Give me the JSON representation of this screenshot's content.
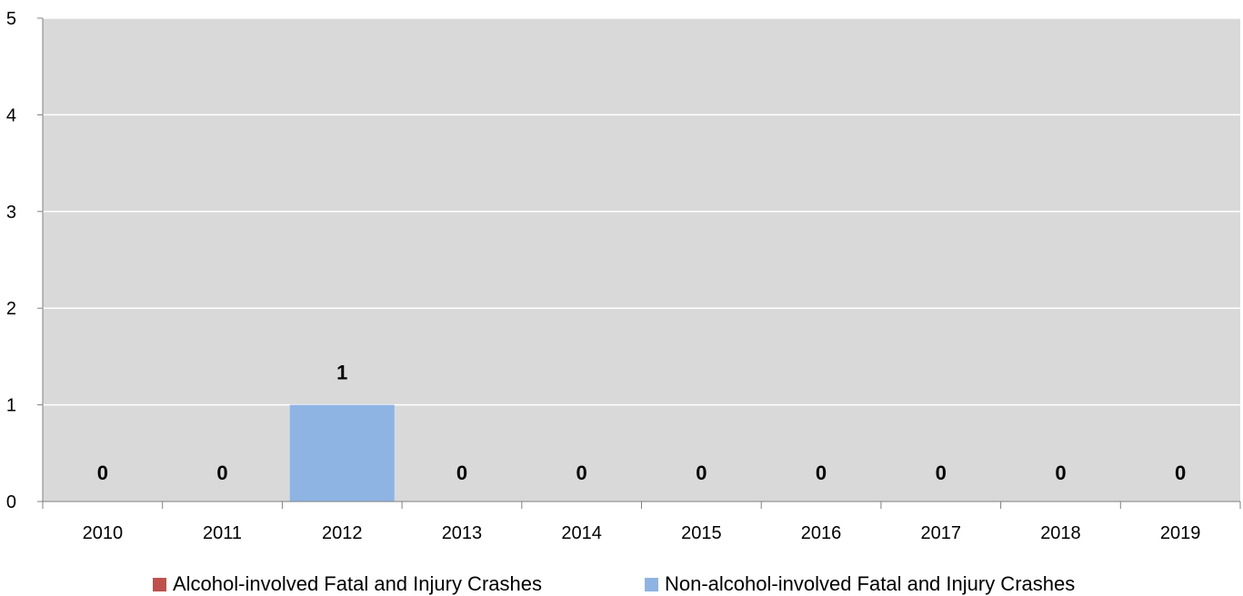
{
  "chart_data": {
    "type": "bar",
    "stacked": true,
    "categories": [
      "2010",
      "2011",
      "2012",
      "2013",
      "2014",
      "2015",
      "2016",
      "2017",
      "2018",
      "2019"
    ],
    "series": [
      {
        "name": "Alcohol-involved Fatal and Injury Crashes",
        "color": "#c0504d",
        "values": [
          0,
          0,
          0,
          0,
          0,
          0,
          0,
          0,
          0,
          0
        ]
      },
      {
        "name": "Non-alcohol-involved Fatal and Injury Crashes",
        "color": "#8eb4e3",
        "values": [
          0,
          0,
          1,
          0,
          0,
          0,
          0,
          0,
          0,
          0
        ]
      }
    ],
    "data_labels": [
      "0",
      "0",
      "1",
      "0",
      "0",
      "0",
      "0",
      "0",
      "0",
      "0"
    ],
    "ylim": [
      0,
      5
    ],
    "yticks": [
      "0",
      "1",
      "2",
      "3",
      "4",
      "5"
    ],
    "grid": true,
    "plot_background": "#d9d9d9",
    "legend_position": "bottom"
  }
}
